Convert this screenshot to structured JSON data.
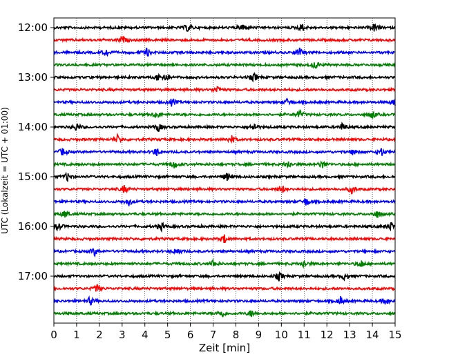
{
  "chart_data": {
    "type": "line",
    "title": "",
    "xlabel": "Zeit  [min]",
    "ylabel": "UTC (Lokalzeit = UTC + 01:00)",
    "xlim": [
      0,
      15
    ],
    "x_ticks": [
      "0",
      "1",
      "2",
      "3",
      "4",
      "5",
      "6",
      "7",
      "8",
      "9",
      "10",
      "11",
      "12",
      "13",
      "14",
      "15"
    ],
    "y_tick_labels": [
      "12:00",
      "13:00",
      "14:00",
      "15:00",
      "16:00",
      "17:00"
    ],
    "grid": "vertical-dotted",
    "trace_interval_min": 15,
    "colors": [
      "#000000",
      "#ff0000",
      "#0000ff",
      "#008000"
    ],
    "series": [
      {
        "start": "12:00",
        "events": [
          5.9,
          8.3,
          10.9,
          14.1
        ]
      },
      {
        "start": "12:15",
        "events": [
          3.0
        ]
      },
      {
        "start": "12:30",
        "events": [
          2.3,
          4.1,
          10.8
        ]
      },
      {
        "start": "12:45",
        "events": [
          11.5
        ]
      },
      {
        "start": "13:00",
        "events": [
          4.6,
          4.9,
          8.8
        ]
      },
      {
        "start": "13:15",
        "events": [
          7.2
        ]
      },
      {
        "start": "13:30",
        "events": [
          5.2,
          10.3,
          15.0
        ]
      },
      {
        "start": "13:45",
        "events": [
          4.5,
          10.8,
          14.0
        ]
      },
      {
        "start": "14:00",
        "events": [
          1.0,
          4.6,
          8.8,
          12.7
        ]
      },
      {
        "start": "14:15",
        "events": [
          2.8,
          7.8
        ]
      },
      {
        "start": "14:30",
        "events": [
          0.4,
          4.5,
          13.2,
          14.4
        ]
      },
      {
        "start": "14:45",
        "events": [
          5.3,
          10.3,
          11.8
        ]
      },
      {
        "start": "15:00",
        "events": [
          0.6,
          7.6
        ]
      },
      {
        "start": "15:15",
        "events": [
          3.1,
          10.0,
          13.1
        ]
      },
      {
        "start": "15:30",
        "events": [
          3.3,
          11.1
        ]
      },
      {
        "start": "15:45",
        "events": [
          0.5,
          14.2
        ]
      },
      {
        "start": "16:00",
        "events": [
          0.2,
          4.7,
          14.8
        ]
      },
      {
        "start": "16:15",
        "events": [
          7.5
        ]
      },
      {
        "start": "16:30",
        "events": [
          1.8,
          5.4
        ]
      },
      {
        "start": "16:45",
        "events": [
          7.0,
          11.0,
          13.5
        ]
      },
      {
        "start": "17:00",
        "events": [
          9.9,
          12.8
        ]
      },
      {
        "start": "17:15",
        "events": [
          1.9
        ]
      },
      {
        "start": "17:30",
        "events": [
          1.6,
          12.6,
          14.6
        ]
      },
      {
        "start": "17:45",
        "events": [
          7.4,
          8.7
        ]
      }
    ]
  }
}
